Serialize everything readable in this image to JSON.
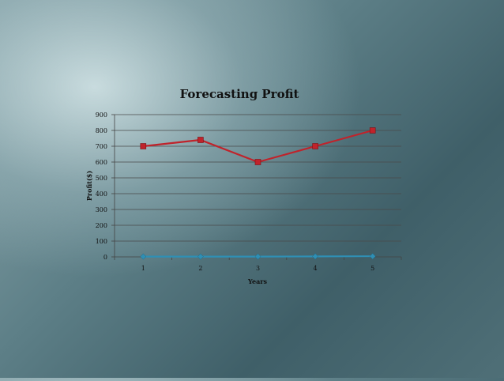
{
  "chart_data": {
    "type": "line",
    "title": "Forecasting Profit",
    "xlabel": "Years",
    "ylabel": "Profit($)",
    "categories": [
      "1",
      "2",
      "3",
      "4",
      "5"
    ],
    "yticks": [
      "0",
      "100",
      "200",
      "300",
      "400",
      "500",
      "600",
      "700",
      "800",
      "900"
    ],
    "ylim": [
      0,
      900
    ],
    "grid": true,
    "legend": "none",
    "series": [
      {
        "color": "#c0232b",
        "marker": "square",
        "values": [
          700,
          740,
          600,
          700,
          800
        ]
      },
      {
        "color": "#2f8fb4",
        "marker": "diamond",
        "values": [
          2,
          2,
          2,
          3,
          4
        ]
      }
    ]
  }
}
